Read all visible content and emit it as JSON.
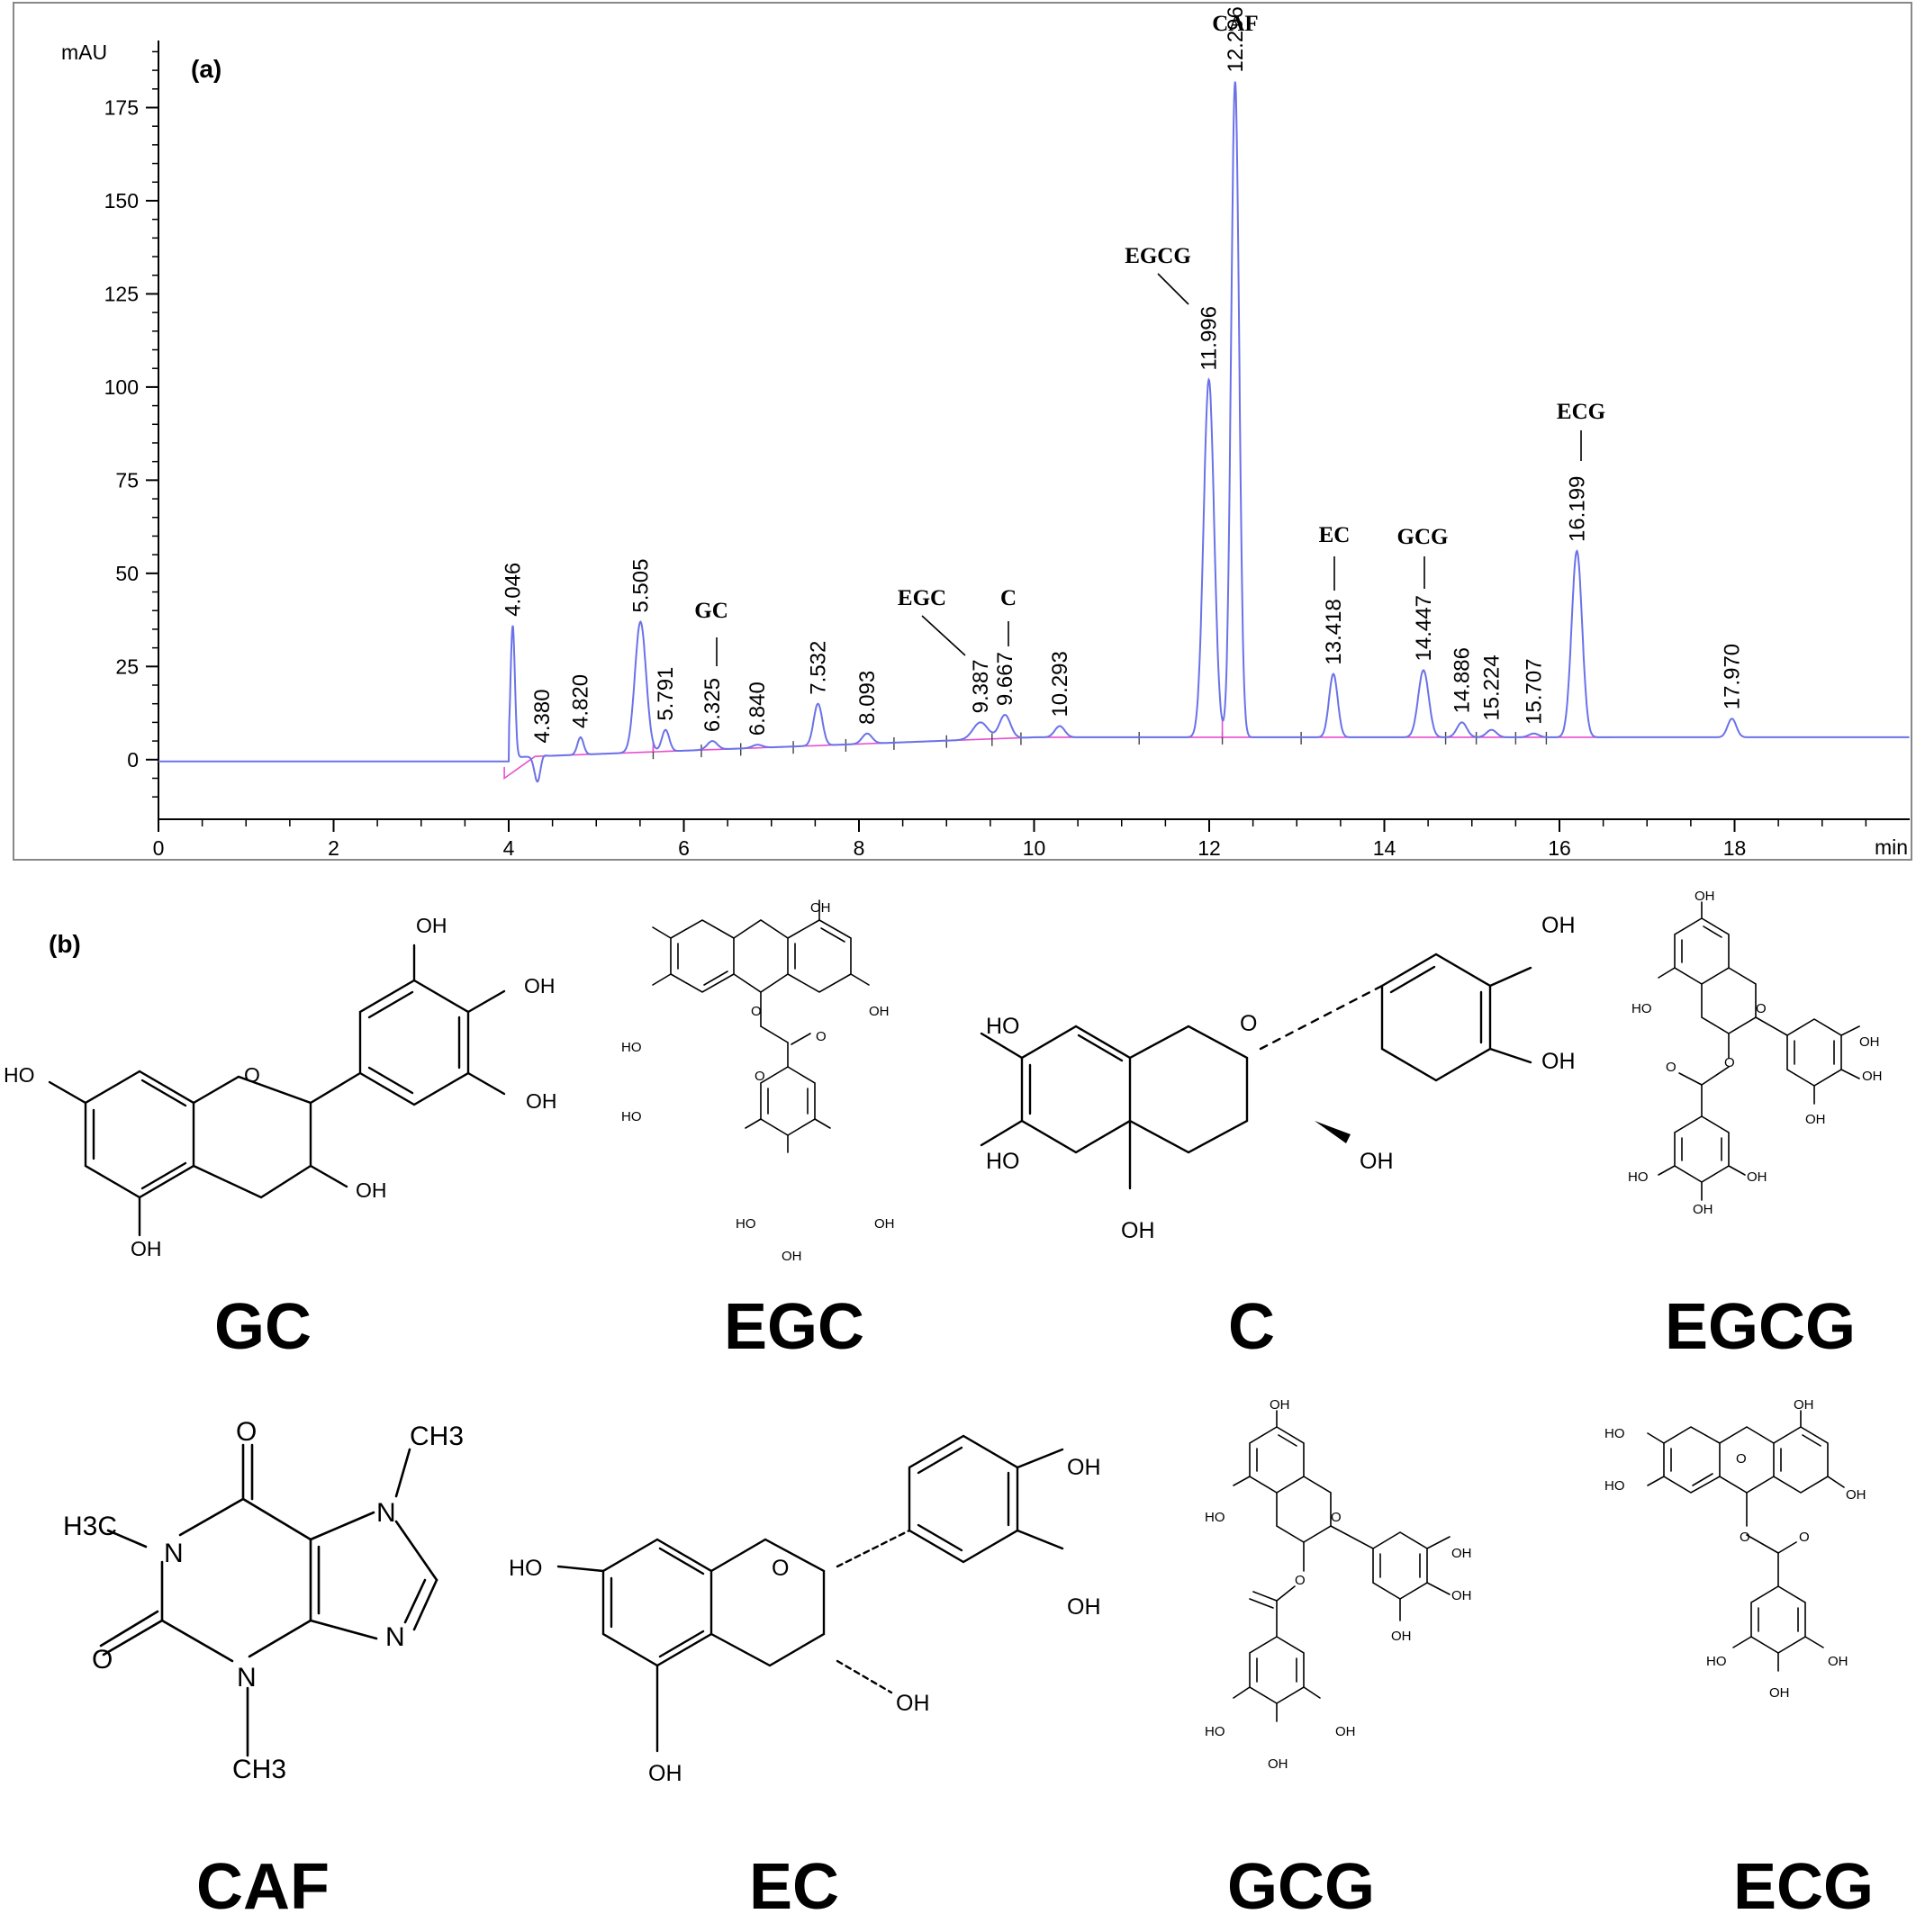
{
  "panel_a_label": "(a)",
  "panel_b_label": "(b)",
  "chart_data": {
    "type": "line",
    "ylabel": "mAU",
    "xlabel": "min",
    "xlim": [
      0,
      20
    ],
    "ylim": [
      -16,
      193
    ],
    "x_ticks": [
      0,
      2,
      4,
      6,
      8,
      10,
      12,
      14,
      16,
      18
    ],
    "y_ticks": [
      0,
      25,
      50,
      75,
      100,
      125,
      150,
      175
    ],
    "grid": false,
    "colors": {
      "signal": "#6a72e8",
      "baseline": "#e84fcf",
      "frame": "#000000"
    },
    "peaks": [
      {
        "label": "4.046",
        "rt": 4.046,
        "height": 36
      },
      {
        "label": "4.380",
        "rt": 4.38,
        "height": 2
      },
      {
        "label": "4.820",
        "rt": 4.82,
        "height": 6
      },
      {
        "label": "5.505",
        "rt": 5.505,
        "height": 37
      },
      {
        "label": "5.791",
        "rt": 5.791,
        "height": 8
      },
      {
        "label": "6.325",
        "rt": 6.325,
        "height": 5
      },
      {
        "label": "6.840",
        "rt": 6.84,
        "height": 4
      },
      {
        "label": "7.532",
        "rt": 7.532,
        "height": 15
      },
      {
        "label": "8.093",
        "rt": 8.093,
        "height": 7
      },
      {
        "label": "9.387",
        "rt": 9.387,
        "height": 10
      },
      {
        "label": "9.667",
        "rt": 9.667,
        "height": 12
      },
      {
        "label": "10.293",
        "rt": 10.293,
        "height": 9
      },
      {
        "label": "11.996",
        "rt": 11.996,
        "height": 102
      },
      {
        "label": "12.296",
        "rt": 12.296,
        "height": 182
      },
      {
        "label": "13.418",
        "rt": 13.418,
        "height": 23
      },
      {
        "label": "14.447",
        "rt": 14.447,
        "height": 24
      },
      {
        "label": "14.886",
        "rt": 14.886,
        "height": 10
      },
      {
        "label": "15.224",
        "rt": 15.224,
        "height": 8
      },
      {
        "label": "15.707",
        "rt": 15.707,
        "height": 7
      },
      {
        "label": "16.199",
        "rt": 16.199,
        "height": 56
      },
      {
        "label": "17.970",
        "rt": 17.97,
        "height": 11
      }
    ],
    "annotations": [
      {
        "text": "GC",
        "rt": 6.325
      },
      {
        "text": "EGC",
        "rt": 9.387
      },
      {
        "text": "C",
        "rt": 9.667
      },
      {
        "text": "EGCG",
        "rt": 11.996
      },
      {
        "text": "CAF",
        "rt": 12.296
      },
      {
        "text": "EC",
        "rt": 13.418
      },
      {
        "text": "GCG",
        "rt": 14.447
      },
      {
        "text": "ECG",
        "rt": 16.199
      }
    ]
  },
  "structures": [
    {
      "name": "GC",
      "atoms": [
        "OH",
        "OH",
        "OH",
        "HO",
        "O",
        "OH",
        "OH"
      ]
    },
    {
      "name": "EGC",
      "atoms": [
        "OH",
        "O",
        "OH",
        "HO",
        "HO",
        "O",
        "O",
        "HO",
        "OH",
        "OH"
      ]
    },
    {
      "name": "C",
      "atoms": [
        "OH",
        "OH",
        "HO",
        "O",
        "HO",
        "OH",
        "OH"
      ]
    },
    {
      "name": "EGCG",
      "atoms": [
        "OH",
        "HO",
        "O",
        "OH",
        "O",
        "O",
        "OH",
        "OH",
        "HO",
        "OH",
        "OH"
      ]
    },
    {
      "name": "CAF",
      "atoms": [
        "O",
        "CH3",
        "H3C",
        "N",
        "N",
        "O",
        "N",
        "N",
        "CH3"
      ]
    },
    {
      "name": "EC",
      "atoms": [
        "OH",
        "HO",
        "O",
        "OH",
        "OH",
        "OH"
      ]
    },
    {
      "name": "GCG",
      "atoms": [
        "OH",
        "HO",
        "O",
        "OH",
        "O",
        "OH",
        "OH",
        "HO",
        "OH",
        "OH"
      ]
    },
    {
      "name": "ECG",
      "atoms": [
        "OH",
        "OH",
        "HO",
        "HO",
        "O",
        "O",
        "O",
        "HO",
        "OH",
        "OH"
      ]
    }
  ]
}
